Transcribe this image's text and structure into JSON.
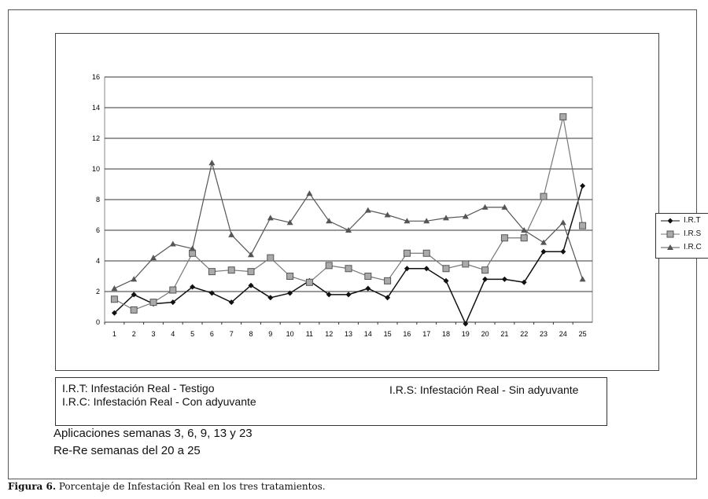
{
  "chart_data": {
    "type": "line",
    "title": "",
    "xlabel": "",
    "ylabel": "",
    "x": [
      1,
      2,
      3,
      4,
      5,
      6,
      7,
      8,
      9,
      10,
      11,
      12,
      13,
      14,
      15,
      16,
      17,
      18,
      19,
      20,
      21,
      22,
      23,
      24,
      25
    ],
    "ylim": [
      0,
      16
    ],
    "yticks": [
      0,
      2,
      4,
      6,
      8,
      10,
      12,
      14,
      16
    ],
    "grid": true,
    "legend_position": "right",
    "series": [
      {
        "name": "I.R.T",
        "marker": "diamond",
        "color": "#111111",
        "values": [
          0.6,
          1.8,
          1.2,
          1.3,
          2.3,
          1.9,
          1.3,
          2.4,
          1.6,
          1.9,
          2.7,
          1.8,
          1.8,
          2.2,
          1.6,
          3.5,
          3.5,
          2.7,
          -0.1,
          2.8,
          2.8,
          2.6,
          4.6,
          4.6,
          8.9
        ]
      },
      {
        "name": "I.R.S",
        "marker": "square",
        "color": "#777777",
        "values": [
          1.5,
          0.8,
          1.3,
          2.1,
          4.5,
          3.3,
          3.4,
          3.3,
          4.2,
          3.0,
          2.6,
          3.7,
          3.5,
          3.0,
          2.7,
          4.5,
          4.5,
          3.5,
          3.8,
          3.4,
          5.5,
          5.5,
          8.2,
          13.4,
          6.3
        ]
      },
      {
        "name": "I.R.C",
        "marker": "triangle",
        "color": "#555555",
        "values": [
          2.2,
          2.8,
          4.2,
          5.1,
          4.8,
          10.4,
          5.7,
          4.4,
          6.8,
          6.5,
          8.4,
          6.6,
          6.0,
          7.3,
          7.0,
          6.6,
          6.6,
          6.8,
          6.9,
          7.5,
          7.5,
          6.0,
          5.2,
          6.5,
          2.8
        ]
      }
    ]
  },
  "notes": {
    "irt": "I.R.T: Infestación Real - Testigo",
    "irc": "I.R.C: Infestación Real -   Con adyuvante",
    "irs": "I.R.S: Infestación Real - Sin adyuvante"
  },
  "applications": "Aplicaciones semanas 3, 6, 9, 13 y 23",
  "rere": "Re-Re semanas del 20 a 25",
  "caption": {
    "label": "Figura 6.",
    "text": " Porcentaje de Infestación Real en los tres tratamientos."
  }
}
